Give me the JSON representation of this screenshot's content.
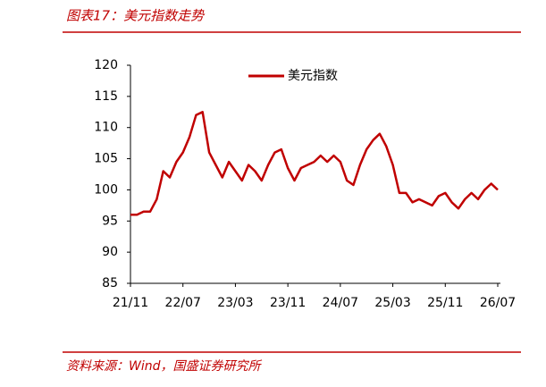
{
  "chart_data": {
    "type": "line",
    "title": "图表17：美元指数走势",
    "source": "资料来源：Wind，国盛证券研究所",
    "x": [
      "21/11",
      "21/12",
      "22/01",
      "22/02",
      "22/03",
      "22/04",
      "22/05",
      "22/06",
      "22/07",
      "22/08",
      "22/09",
      "22/10",
      "22/11",
      "22/12",
      "23/01",
      "23/02",
      "23/03",
      "23/04",
      "23/05",
      "23/06",
      "23/07",
      "23/08",
      "23/09",
      "23/10",
      "23/11",
      "23/12",
      "24/01",
      "24/02",
      "24/03",
      "24/04",
      "24/05",
      "24/06",
      "24/07",
      "24/08",
      "24/09",
      "24/10",
      "24/11",
      "24/12",
      "25/01",
      "25/02",
      "25/03",
      "25/04",
      "25/05",
      "25/06",
      "25/07",
      "25/08",
      "25/09",
      "25/10",
      "25/11",
      "25/12",
      "26/01",
      "26/02",
      "26/03",
      "26/04",
      "26/05",
      "26/06",
      "26/07"
    ],
    "series": [
      {
        "name": "美元指数",
        "color": "#c00000",
        "values": [
          96,
          96,
          96.5,
          96.5,
          98.5,
          103,
          102,
          104.5,
          106,
          108.5,
          112,
          112.5,
          106,
          104,
          102,
          104.5,
          103,
          101.5,
          104,
          103,
          101.5,
          104,
          106,
          106.5,
          103.5,
          101.5,
          103.5,
          104,
          104.5,
          105.5,
          104.5,
          105.5,
          104.5,
          101.5,
          100.8,
          104,
          106.5,
          108,
          109,
          107,
          104,
          99.5,
          99.5,
          98,
          98.5,
          98,
          97.5,
          99,
          99.5,
          98,
          97,
          98.5,
          99.5,
          98.5,
          100,
          101,
          100
        ]
      }
    ],
    "xticks": [
      "21/11",
      "22/07",
      "23/03",
      "23/11",
      "24/07",
      "25/03",
      "25/11",
      "26/07"
    ],
    "ylim": [
      85,
      120
    ],
    "yticks": [
      85,
      90,
      95,
      100,
      105,
      110,
      115,
      120
    ],
    "grid": false
  }
}
